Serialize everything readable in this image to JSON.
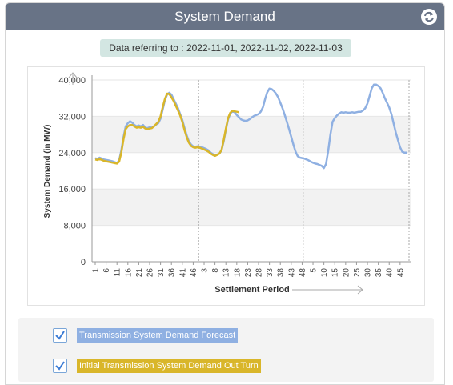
{
  "chart_data": {
    "type": "line",
    "title": "System Demand",
    "subtitle": "Data referring to : 2022-11-01, 2022-11-02, 2022-11-03",
    "y_label": "System Demand (in MW)",
    "x_label": "Settlement Period",
    "categories": [
      1,
      null,
      null,
      null,
      null,
      6,
      null,
      null,
      null,
      null,
      11,
      null,
      null,
      null,
      null,
      16,
      null,
      null,
      null,
      null,
      21,
      null,
      null,
      null,
      null,
      26,
      null,
      null,
      null,
      null,
      31,
      null,
      null,
      null,
      null,
      36,
      null,
      null,
      null,
      null,
      41,
      null,
      null,
      null,
      null,
      46,
      null,
      null,
      null,
      null,
      3,
      null,
      null,
      null,
      null,
      8,
      null,
      null,
      null,
      null,
      13,
      null,
      null,
      null,
      null,
      18,
      null,
      null,
      null,
      null,
      23,
      null,
      null,
      null,
      null,
      28,
      null,
      null,
      null,
      null,
      33,
      null,
      null,
      null,
      null,
      38,
      null,
      null,
      null,
      null,
      43,
      null,
      null,
      null,
      null,
      48,
      null,
      null,
      null,
      null,
      5,
      null,
      null,
      null,
      null,
      10,
      null,
      null,
      null,
      null,
      15,
      null,
      null,
      null,
      null,
      20,
      null,
      null,
      null,
      null,
      25,
      null,
      null,
      null,
      null,
      30,
      null,
      null,
      null,
      null,
      35,
      null,
      null,
      null,
      null,
      40,
      null,
      null,
      null,
      null,
      45,
      null,
      null,
      null
    ],
    "series": [
      {
        "name": "Transmission System Demand Forecast",
        "color": "#8fb0e2",
        "values": [
          22800,
          22600,
          22900,
          22700,
          22500,
          22400,
          22300,
          22200,
          22100,
          21900,
          21700,
          22300,
          24500,
          27500,
          29800,
          30500,
          30900,
          30600,
          30100,
          29800,
          30000,
          29800,
          30100,
          29500,
          29400,
          29600,
          29500,
          29800,
          30200,
          30500,
          31500,
          33500,
          35500,
          36800,
          37200,
          36800,
          35800,
          34800,
          33800,
          32500,
          31200,
          29500,
          27800,
          26500,
          25800,
          25400,
          25300,
          25400,
          25300,
          25200,
          25000,
          24800,
          24500,
          24000,
          23700,
          23500,
          23600,
          23800,
          24500,
          26500,
          29000,
          31300,
          32600,
          33100,
          32900,
          32300,
          31800,
          31300,
          31100,
          31000,
          31100,
          31400,
          31800,
          32100,
          32300,
          32500,
          33000,
          34000,
          35800,
          37300,
          38100,
          38000,
          37600,
          37000,
          36200,
          35000,
          33800,
          32300,
          30800,
          29200,
          27500,
          25800,
          24200,
          23200,
          22900,
          22800,
          22700,
          22500,
          22300,
          22000,
          21800,
          21600,
          21500,
          21300,
          21100,
          20600,
          21500,
          24500,
          28000,
          30800,
          31600,
          32200,
          32600,
          32900,
          32800,
          32900,
          32800,
          32800,
          32900,
          32800,
          32900,
          33000,
          33000,
          33300,
          33800,
          34800,
          36500,
          38200,
          39000,
          39000,
          38700,
          38200,
          37200,
          36000,
          35000,
          34000,
          32500,
          30500,
          28500,
          26800,
          25200,
          24200,
          24000,
          24000
        ]
      },
      {
        "name": "Initial Transmission System Demand Out Turn",
        "color": "#d9b62a",
        "values": [
          22500,
          22400,
          22600,
          22400,
          22200,
          22100,
          22000,
          21900,
          21800,
          21700,
          21600,
          22000,
          24000,
          27000,
          29200,
          29800,
          30100,
          30100,
          29800,
          29500,
          29600,
          29500,
          29700,
          29300,
          29200,
          29300,
          29400,
          29800,
          30300,
          30800,
          32000,
          34000,
          35800,
          37000,
          36900,
          36200,
          35400,
          34300,
          33300,
          32200,
          30800,
          29000,
          27400,
          26200,
          25500,
          25200,
          25100,
          25200,
          25100,
          24900,
          24700,
          24500,
          24200,
          23800,
          23500,
          23300,
          23500,
          23800,
          24600,
          26800,
          29300,
          31600,
          32800,
          33200,
          33100,
          33000,
          32900,
          null,
          null,
          null,
          null,
          null,
          null,
          null,
          null,
          null,
          null,
          null,
          null,
          null,
          null,
          null,
          null,
          null,
          null,
          null,
          null,
          null,
          null,
          null,
          null,
          null,
          null,
          null,
          null,
          null,
          null,
          null,
          null,
          null,
          null,
          null,
          null,
          null,
          null,
          null,
          null,
          null,
          null,
          null,
          null,
          null,
          null,
          null,
          null,
          null,
          null,
          null,
          null,
          null,
          null,
          null,
          null,
          null,
          null,
          null,
          null,
          null,
          null,
          null,
          null,
          null,
          null,
          null,
          null,
          null,
          null,
          null,
          null,
          null,
          null,
          null,
          null,
          null
        ]
      }
    ],
    "ylim": [
      0,
      40000
    ],
    "yticks": [
      0,
      {
        "value": 8000,
        "label": "8,000"
      },
      {
        "value": 16000,
        "label": "16,000"
      },
      {
        "value": 24000,
        "label": "24,000"
      },
      {
        "value": 32000,
        "label": "32,000"
      },
      {
        "value": 40000,
        "label": "40,000"
      }
    ],
    "grid": true
  }
}
